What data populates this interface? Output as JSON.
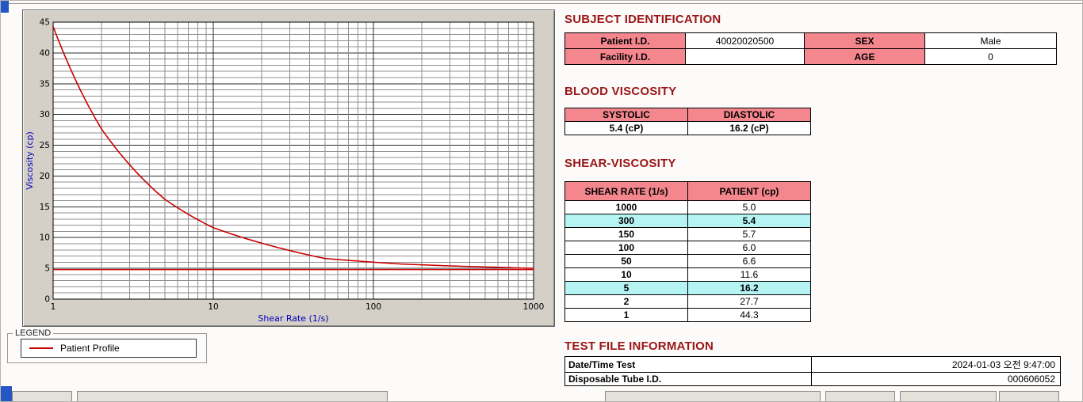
{
  "colors": {
    "title": "#9a1515",
    "header_pink": "#f4868e",
    "highlight_cyan": "#b6f4f4",
    "curve_red": "#cc0000",
    "axis_blue": "#0000bb",
    "panel_gray": "#d4d0c8"
  },
  "chart_data": {
    "type": "line",
    "x_scale": "log",
    "xlim": [
      1,
      1000
    ],
    "ylim": [
      0,
      45
    ],
    "x_ticks": [
      1,
      10,
      100,
      1000
    ],
    "y_ticks": [
      0,
      5,
      10,
      15,
      20,
      25,
      30,
      35,
      40,
      45
    ],
    "xlabel": "Shear Rate (1/s)",
    "ylabel": "Viscosity (cp)",
    "grid": "dense log-linear grid on",
    "series": [
      {
        "name": "Patient Profile",
        "color": "#cc0000",
        "x": [
          1,
          2,
          5,
          10,
          50,
          100,
          150,
          300,
          1000
        ],
        "y": [
          44.3,
          27.7,
          16.2,
          11.6,
          6.6,
          6.0,
          5.7,
          5.4,
          5.0
        ]
      }
    ],
    "reference_line_y": 4.8,
    "legend": {
      "title": "LEGEND",
      "position": "below-left",
      "entries": [
        {
          "label": "Patient Profile",
          "color": "#cc0000"
        }
      ]
    }
  },
  "subject": {
    "title": "SUBJECT IDENTIFICATION",
    "rows": [
      {
        "label1": "Patient I.D.",
        "value1": "40020020500",
        "label2": "SEX",
        "value2": "Male"
      },
      {
        "label1": "Facility I.D.",
        "value1": "",
        "label2": "AGE",
        "value2": "0"
      }
    ]
  },
  "blood_viscosity": {
    "title": "BLOOD VISCOSITY",
    "headers": [
      "SYSTOLIC",
      "DIASTOLIC"
    ],
    "values": [
      "5.4 (cP)",
      "16.2 (cP)"
    ]
  },
  "shear_viscosity": {
    "title": "SHEAR-VISCOSITY",
    "headers": [
      "SHEAR RATE (1/s)",
      "PATIENT (cp)"
    ],
    "rows": [
      {
        "rate": "1000",
        "value": "5.0",
        "highlight": false
      },
      {
        "rate": "300",
        "value": "5.4",
        "highlight": true
      },
      {
        "rate": "150",
        "value": "5.7",
        "highlight": false
      },
      {
        "rate": "100",
        "value": "6.0",
        "highlight": false
      },
      {
        "rate": "50",
        "value": "6.6",
        "highlight": false
      },
      {
        "rate": "10",
        "value": "11.6",
        "highlight": false
      },
      {
        "rate": "5",
        "value": "16.2",
        "highlight": true
      },
      {
        "rate": "2",
        "value": "27.7",
        "highlight": false
      },
      {
        "rate": "1",
        "value": "44.3",
        "highlight": false
      }
    ]
  },
  "test_file": {
    "title": "TEST FILE INFORMATION",
    "rows": [
      {
        "label": "Date/Time Test",
        "value": "2024-01-03  오전 9:47:00"
      },
      {
        "label": "Disposable Tube I.D.",
        "value": "000606052"
      }
    ]
  }
}
